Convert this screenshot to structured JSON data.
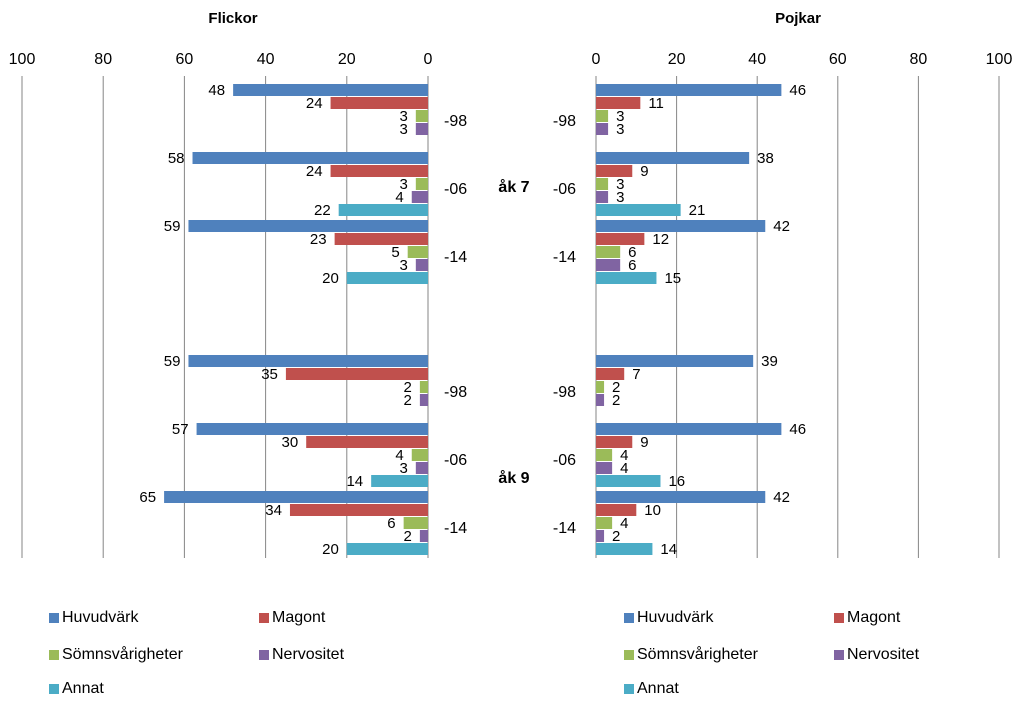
{
  "chart_data": [
    {
      "type": "bar",
      "orientation": "horizontal",
      "direction": "reversed",
      "title": "Flickor",
      "xlim": [
        0,
        100
      ],
      "xticks": [
        "100",
        "80",
        "60",
        "40",
        "20",
        "0"
      ],
      "group_labels": [
        "åk 7",
        "åk 9"
      ],
      "categories": [
        "-98",
        "-06",
        "-14",
        "-98",
        "-06",
        "-14"
      ],
      "series": [
        {
          "name": "Huvudvärk",
          "values": [
            48,
            58,
            59,
            59,
            57,
            65
          ]
        },
        {
          "name": "Magont",
          "values": [
            24,
            24,
            23,
            35,
            30,
            34
          ]
        },
        {
          "name": "Sömnsvårigheter",
          "values": [
            3,
            3,
            5,
            2,
            4,
            6
          ]
        },
        {
          "name": "Nervositet",
          "values": [
            3,
            4,
            3,
            2,
            3,
            2
          ]
        },
        {
          "name": "Annat",
          "values": [
            null,
            22,
            20,
            null,
            14,
            20
          ]
        }
      ],
      "grid": true,
      "legend": "bottom"
    },
    {
      "type": "bar",
      "orientation": "horizontal",
      "title": "Pojkar",
      "xlim": [
        0,
        100
      ],
      "xticks": [
        "0",
        "20",
        "40",
        "60",
        "80",
        "100"
      ],
      "group_labels": [
        "åk 7",
        "åk 9"
      ],
      "categories": [
        "-98",
        "-06",
        "-14",
        "-98",
        "-06",
        "-14"
      ],
      "series": [
        {
          "name": "Huvudvärk",
          "values": [
            46,
            38,
            42,
            39,
            46,
            42
          ]
        },
        {
          "name": "Magont",
          "values": [
            11,
            9,
            12,
            7,
            9,
            10
          ]
        },
        {
          "name": "Sömnsvårigheter",
          "values": [
            3,
            3,
            6,
            2,
            4,
            4
          ]
        },
        {
          "name": "Nervositet",
          "values": [
            3,
            3,
            6,
            2,
            4,
            2
          ]
        },
        {
          "name": "Annat",
          "values": [
            null,
            21,
            15,
            null,
            16,
            14
          ]
        }
      ],
      "grid": true,
      "legend": "bottom"
    }
  ],
  "colors": {
    "Huvudvärk": "#4F81BD",
    "Magont": "#C0504D",
    "Sömnsvårigheter": "#9BBB59",
    "Nervositet": "#8064A2",
    "Annat": "#4BACC6",
    "grid": "#868686"
  }
}
